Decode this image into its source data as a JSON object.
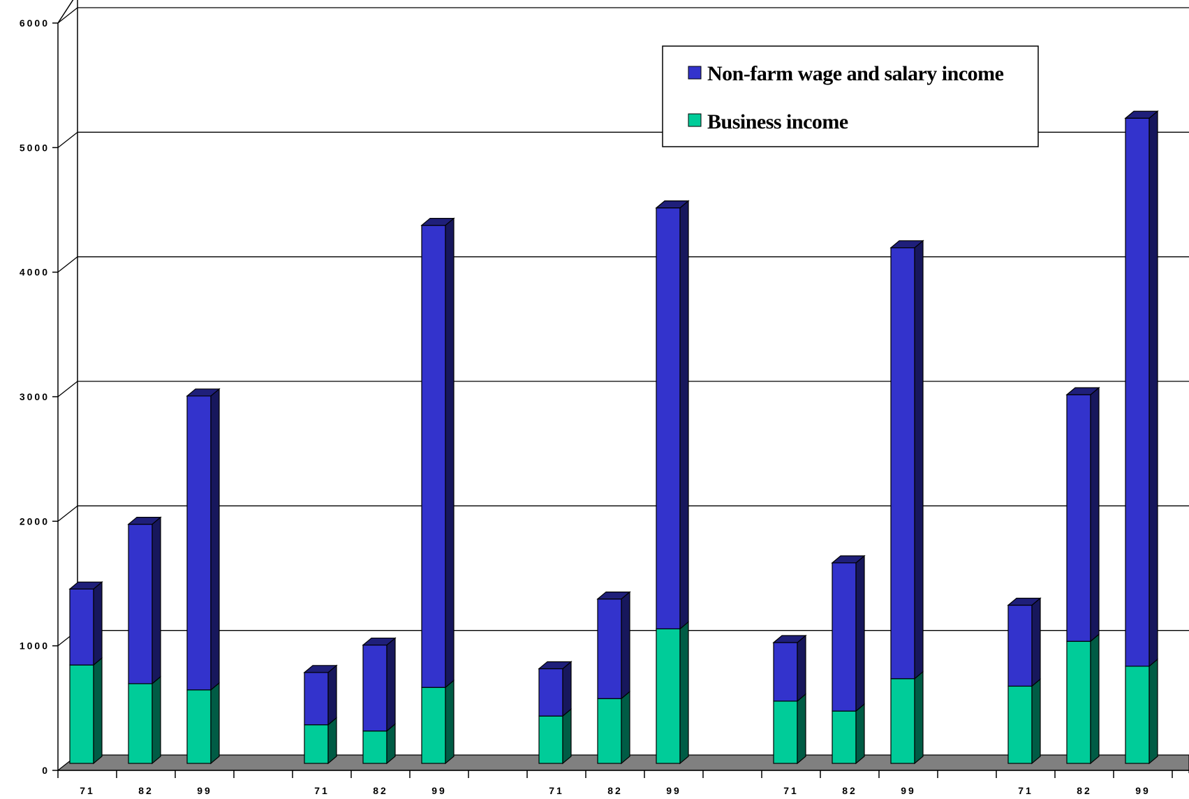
{
  "chart_data": {
    "type": "bar",
    "stacked": true,
    "three_d": true,
    "categories": [
      "71",
      "82",
      "99",
      "71",
      "82",
      "99",
      "71",
      "82",
      "99",
      "71",
      "82",
      "99",
      "71",
      "82",
      "99"
    ],
    "group_size": 3,
    "series": [
      {
        "name": "Business income",
        "values": [
          790,
          640,
          590,
          310,
          260,
          610,
          380,
          520,
          1080,
          500,
          420,
          680,
          620,
          980,
          780
        ],
        "color": "#00cc99"
      },
      {
        "name": "Non-farm wage and salary income",
        "values": [
          610,
          1280,
          2360,
          420,
          690,
          3710,
          380,
          800,
          3380,
          470,
          1190,
          3460,
          650,
          1980,
          4400
        ],
        "color": "#3333cc"
      }
    ],
    "ylim": [
      0,
      6000
    ],
    "yticks": [
      0,
      1000,
      2000,
      3000,
      4000,
      5000,
      6000
    ],
    "grid": true,
    "legend_position": "top-right",
    "title": "",
    "xlabel": "",
    "ylabel": ""
  }
}
